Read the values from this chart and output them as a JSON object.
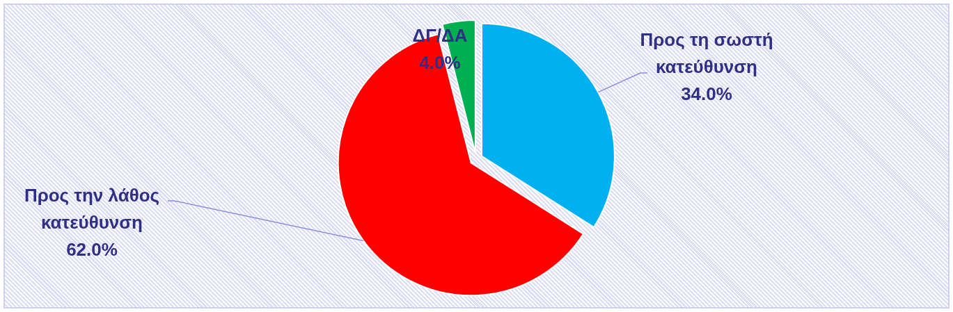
{
  "chart_data": {
    "type": "pie",
    "categories": [
      "Προς τη σωστή κατεύθυνση",
      "Προς την λάθος κατεύθυνση",
      "ΔΓ/ΔΑ"
    ],
    "values": [
      34,
      62,
      4
    ],
    "colors": [
      "#00b0f0",
      "#ff0000",
      "#00b050"
    ],
    "value_labels": [
      "34.0%",
      "62.0%",
      "4.0%"
    ]
  }
}
